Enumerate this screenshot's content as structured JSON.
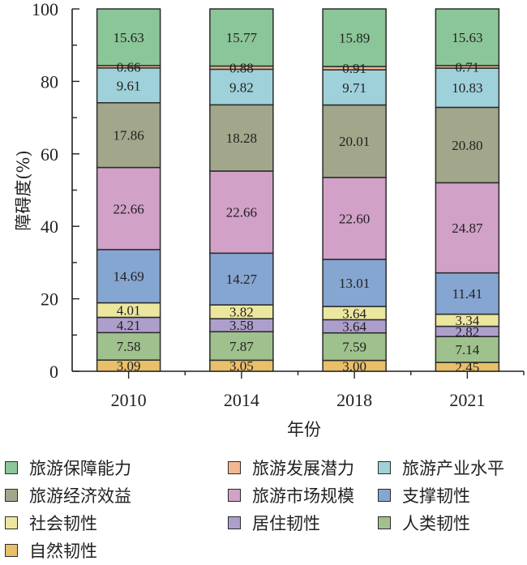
{
  "chart_data": {
    "type": "bar",
    "stacked": true,
    "title": "",
    "xlabel": "年份",
    "ylabel": "障碍度(%)",
    "ylim": [
      0,
      100
    ],
    "yticks": [
      0,
      20,
      40,
      60,
      80,
      100
    ],
    "grid": false,
    "legend_position": "bottom",
    "categories": [
      "2010",
      "2014",
      "2018",
      "2021"
    ],
    "series": [
      {
        "name": "自然韧性",
        "color": "#e9bf6a",
        "values": [
          3.09,
          3.05,
          3.0,
          2.45
        ]
      },
      {
        "name": "人类韧性",
        "color": "#9fc18d",
        "values": [
          7.58,
          7.87,
          7.59,
          7.14
        ]
      },
      {
        "name": "居住韧性",
        "color": "#ad9fcc",
        "values": [
          4.21,
          3.58,
          3.64,
          2.82
        ]
      },
      {
        "name": "社会韧性",
        "color": "#ebe79f",
        "values": [
          4.01,
          3.82,
          3.64,
          3.34
        ]
      },
      {
        "name": "支撑韧性",
        "color": "#85a6d1",
        "values": [
          14.69,
          14.27,
          13.01,
          11.41
        ]
      },
      {
        "name": "旅游市场规模",
        "color": "#d1a1c8",
        "values": [
          22.66,
          22.66,
          22.6,
          24.87
        ]
      },
      {
        "name": "旅游经济效益",
        "color": "#a2a78b",
        "values": [
          17.86,
          18.28,
          20.01,
          20.8
        ]
      },
      {
        "name": "旅游产业水平",
        "color": "#9fd1da",
        "values": [
          9.61,
          9.82,
          9.71,
          10.83
        ]
      },
      {
        "name": "旅游发展潜力",
        "color": "#f2b98f",
        "values": [
          0.66,
          0.88,
          0.91,
          0.71
        ]
      },
      {
        "name": "旅游保障能力",
        "color": "#8bc698",
        "values": [
          15.63,
          15.77,
          15.89,
          15.63
        ]
      }
    ]
  },
  "legend": {
    "items": [
      {
        "label": "旅游保障能力",
        "color": "#8bc698"
      },
      {
        "label": "旅游发展潜力",
        "color": "#f2b98f"
      },
      {
        "label": "旅游产业水平",
        "color": "#9fd1da"
      },
      {
        "label": "旅游经济效益",
        "color": "#a2a78b"
      },
      {
        "label": "旅游市场规模",
        "color": "#d1a1c8"
      },
      {
        "label": "支撑韧性",
        "color": "#85a6d1"
      },
      {
        "label": "社会韧性",
        "color": "#ebe79f"
      },
      {
        "label": "居住韧性",
        "color": "#ad9fcc"
      },
      {
        "label": "人类韧性",
        "color": "#9fc18d"
      },
      {
        "label": "自然韧性",
        "color": "#e9bf6a"
      }
    ]
  }
}
